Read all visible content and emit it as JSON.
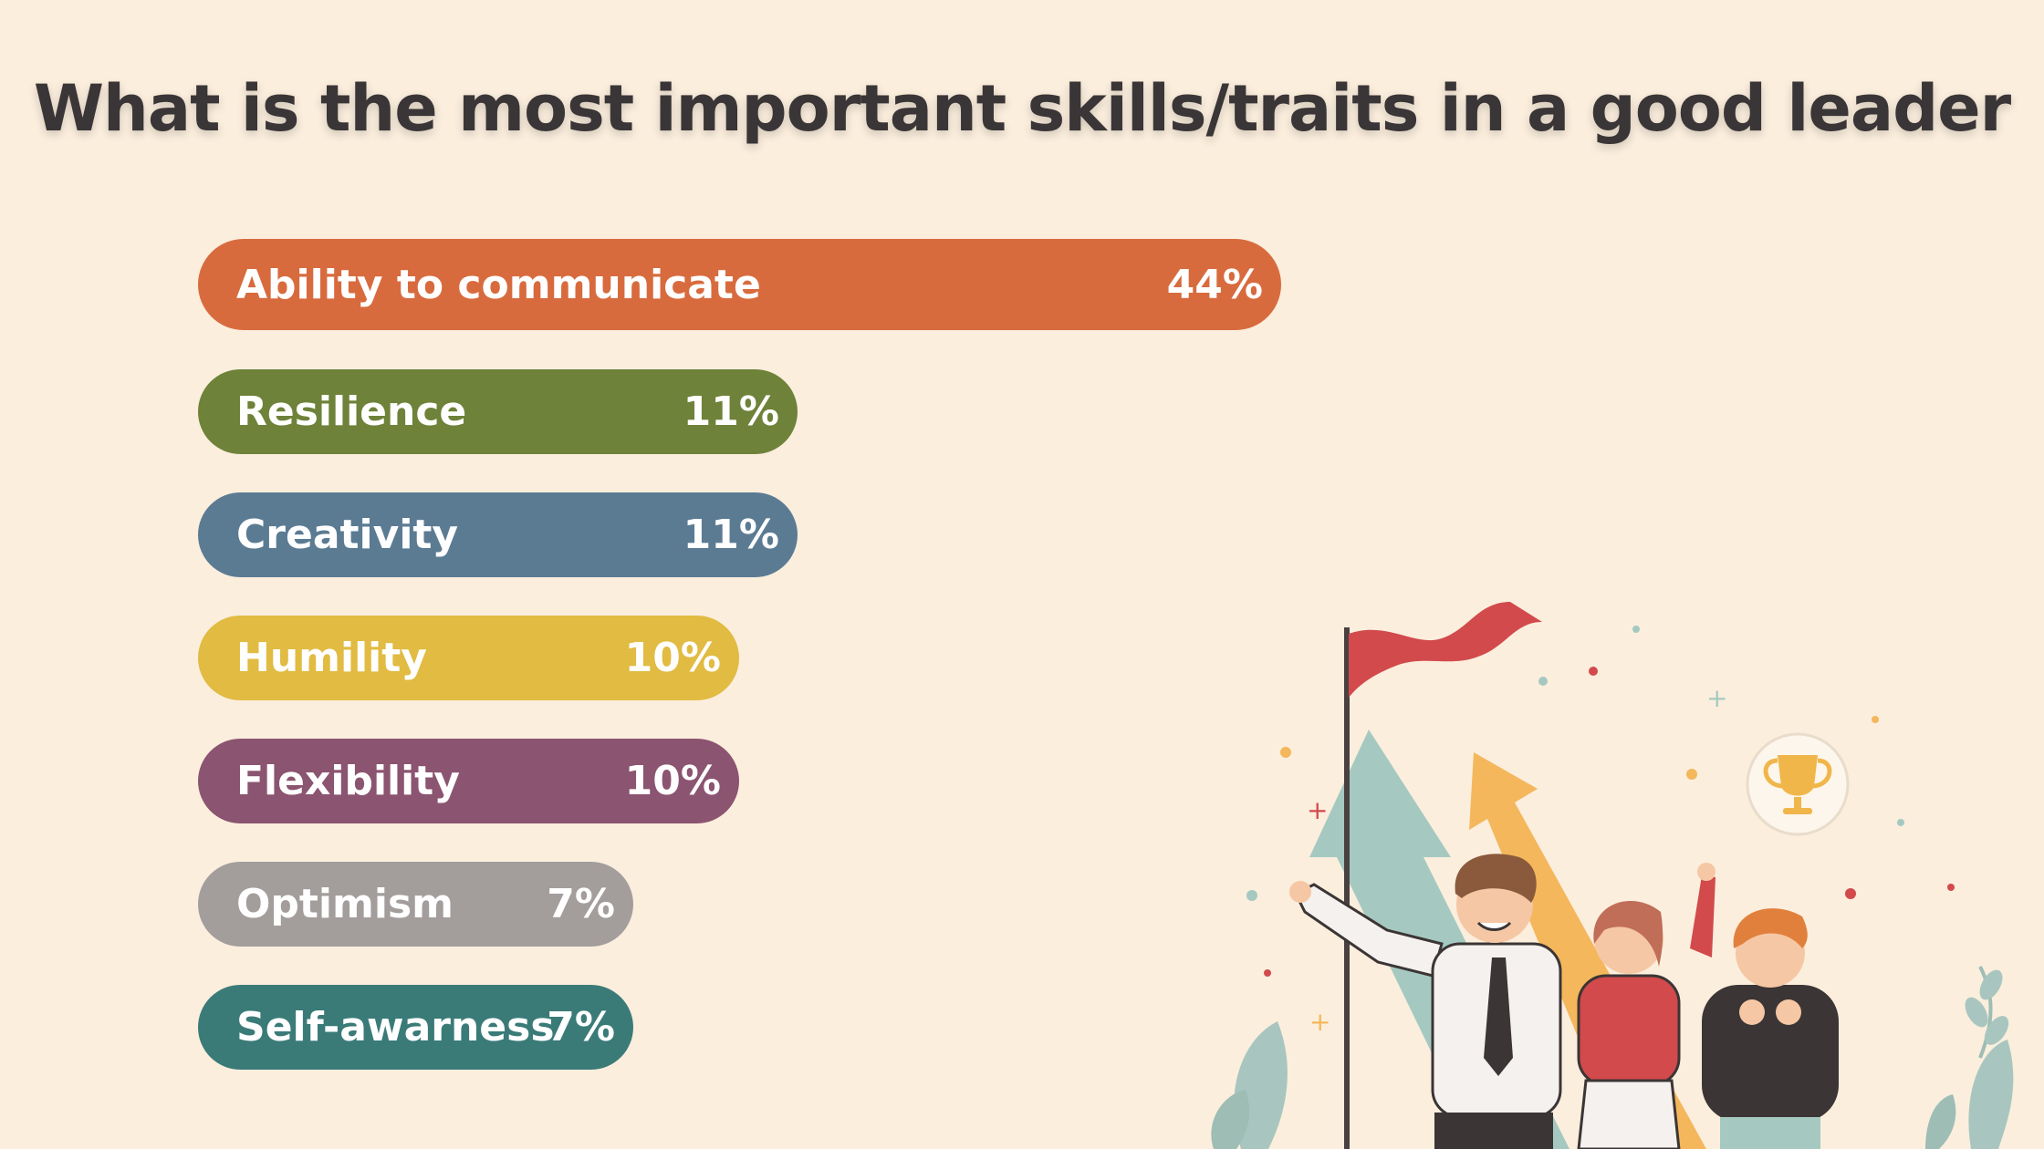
{
  "chart_data": {
    "type": "bar",
    "orientation": "horizontal",
    "title": "What is the most important skills/traits in a good leader",
    "categories": [
      "Ability to communicate",
      "Resilience",
      "Creativity",
      "Humility",
      "Flexibility",
      "Optimism",
      "Self-awarness"
    ],
    "values": [
      44,
      11,
      11,
      10,
      10,
      7,
      7
    ],
    "value_labels": [
      "44%",
      "11%",
      "11%",
      "10%",
      "10%",
      "7%",
      "7%"
    ],
    "colors": [
      "#d86b3e",
      "#6e8239",
      "#5b7b93",
      "#e1bb42",
      "#8b5470",
      "#a39d9c",
      "#3a7b78"
    ],
    "unit": "%",
    "grid": false,
    "legend": "none"
  }
}
